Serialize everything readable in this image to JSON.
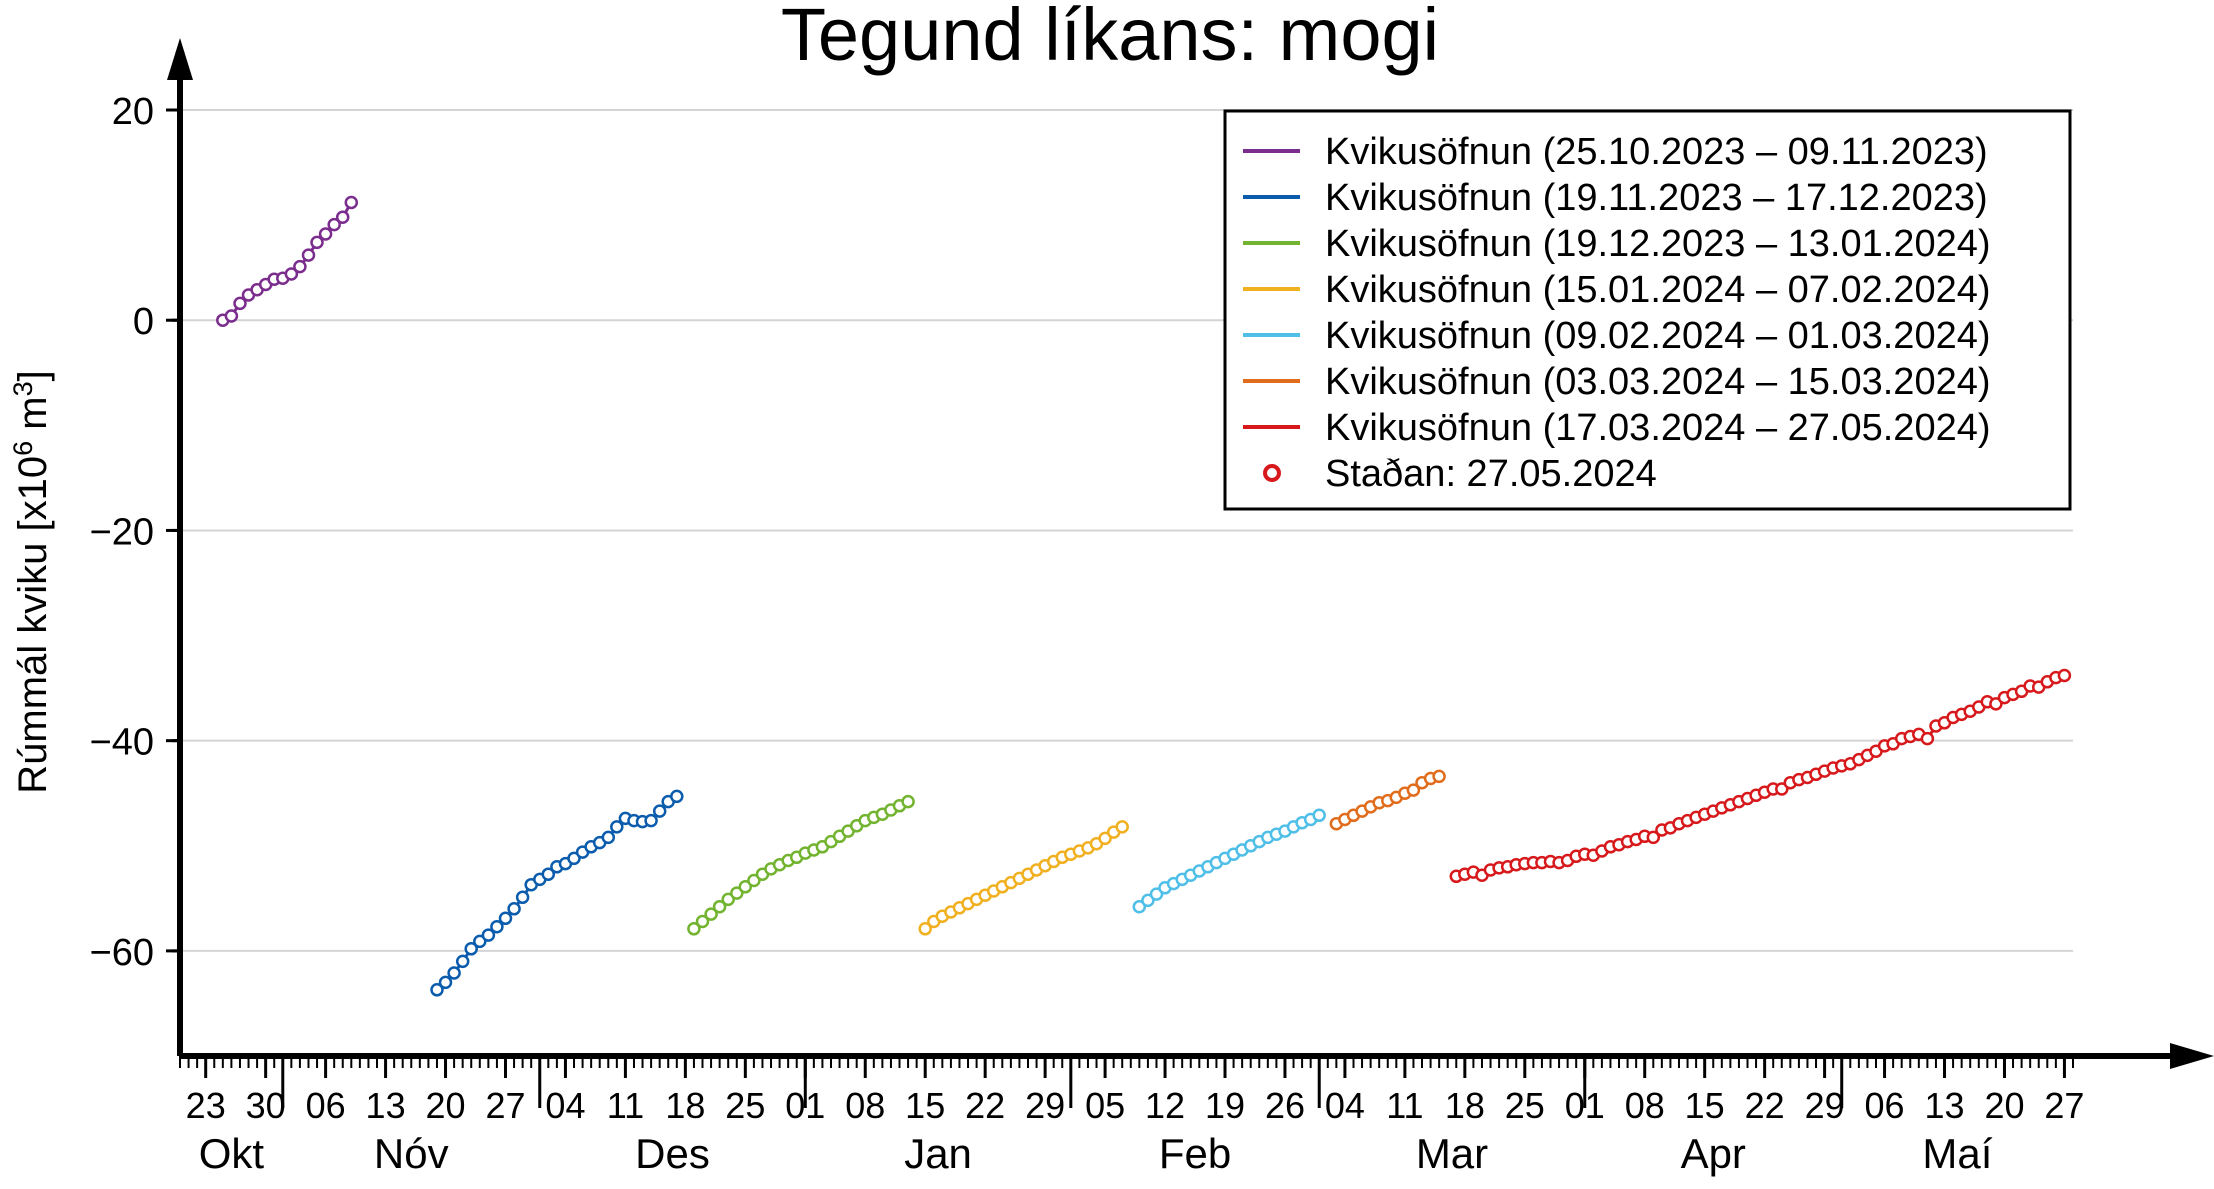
{
  "chart_data": {
    "type": "scatter",
    "title": "Tegund líkans: mogi",
    "ylabel_main": "Rúmmál kviku [x10",
    "ylabel_sup1": "6",
    "ylabel_mid": " m",
    "ylabel_sup2": "3",
    "ylabel_end": "]",
    "ylim": [
      -70,
      20
    ],
    "yticks": [
      -60,
      -40,
      -20,
      0,
      20
    ],
    "ytick_labels": [
      "−60",
      "−40",
      "−20",
      "0",
      "20"
    ],
    "xlim": [
      "2023-10-20",
      "2024-05-28"
    ],
    "grid": "horizontal",
    "legend_position": "top-right",
    "x_day_ticks": [
      {
        "date": "2023-10-23",
        "label": "23"
      },
      {
        "date": "2023-10-30",
        "label": "30"
      },
      {
        "date": "2023-11-06",
        "label": "06"
      },
      {
        "date": "2023-11-13",
        "label": "13"
      },
      {
        "date": "2023-11-20",
        "label": "20"
      },
      {
        "date": "2023-11-27",
        "label": "27"
      },
      {
        "date": "2023-12-04",
        "label": "04"
      },
      {
        "date": "2023-12-11",
        "label": "11"
      },
      {
        "date": "2023-12-18",
        "label": "18"
      },
      {
        "date": "2023-12-25",
        "label": "25"
      },
      {
        "date": "2024-01-01",
        "label": "01"
      },
      {
        "date": "2024-01-08",
        "label": "08"
      },
      {
        "date": "2024-01-15",
        "label": "15"
      },
      {
        "date": "2024-01-22",
        "label": "22"
      },
      {
        "date": "2024-01-29",
        "label": "29"
      },
      {
        "date": "2024-02-05",
        "label": "05"
      },
      {
        "date": "2024-02-12",
        "label": "12"
      },
      {
        "date": "2024-02-19",
        "label": "19"
      },
      {
        "date": "2024-02-26",
        "label": "26"
      },
      {
        "date": "2024-03-04",
        "label": "04"
      },
      {
        "date": "2024-03-11",
        "label": "11"
      },
      {
        "date": "2024-03-18",
        "label": "18"
      },
      {
        "date": "2024-03-25",
        "label": "25"
      },
      {
        "date": "2024-04-01",
        "label": "01"
      },
      {
        "date": "2024-04-08",
        "label": "08"
      },
      {
        "date": "2024-04-15",
        "label": "15"
      },
      {
        "date": "2024-04-22",
        "label": "22"
      },
      {
        "date": "2024-04-29",
        "label": "29"
      },
      {
        "date": "2024-05-06",
        "label": "06"
      },
      {
        "date": "2024-05-13",
        "label": "13"
      },
      {
        "date": "2024-05-20",
        "label": "20"
      },
      {
        "date": "2024-05-27",
        "label": "27"
      }
    ],
    "x_months": [
      {
        "label": "Okt",
        "start": "2023-10-20",
        "end": "2023-11-01",
        "boundary": "2023-11-01"
      },
      {
        "label": "Nóv",
        "start": "2023-11-01",
        "end": "2023-12-01",
        "boundary": "2023-12-01"
      },
      {
        "label": "Des",
        "start": "2023-12-01",
        "end": "2024-01-01",
        "boundary": "2024-01-01"
      },
      {
        "label": "Jan",
        "start": "2024-01-01",
        "end": "2024-02-01",
        "boundary": "2024-02-01"
      },
      {
        "label": "Feb",
        "start": "2024-02-01",
        "end": "2024-03-01",
        "boundary": "2024-03-01"
      },
      {
        "label": "Mar",
        "start": "2024-03-01",
        "end": "2024-04-01",
        "boundary": "2024-04-01"
      },
      {
        "label": "Apr",
        "start": "2024-04-01",
        "end": "2024-05-01",
        "boundary": "2024-05-01"
      },
      {
        "label": "Maí",
        "start": "2024-05-01",
        "end": "2024-05-28",
        "boundary": null
      }
    ],
    "series": [
      {
        "name": "Kvikusöfnun (25.10.2023 – 09.11.2023)",
        "color": "#7b2d8e",
        "x": [
          "2023-10-25",
          "2023-10-26",
          "2023-10-27",
          "2023-10-28",
          "2023-10-29",
          "2023-10-30",
          "2023-10-31",
          "2023-11-01",
          "2023-11-02",
          "2023-11-03",
          "2023-11-04",
          "2023-11-05",
          "2023-11-06",
          "2023-11-07",
          "2023-11-08",
          "2023-11-09"
        ],
        "y": [
          0.0,
          0.4,
          1.6,
          2.4,
          2.9,
          3.4,
          3.9,
          4.0,
          4.4,
          5.1,
          6.2,
          7.4,
          8.2,
          9.1,
          9.8,
          11.2
        ]
      },
      {
        "name": "Kvikusöfnun (19.11.2023 – 17.12.2023)",
        "color": "#0b5cad",
        "x": [
          "2023-11-19",
          "2023-11-20",
          "2023-11-21",
          "2023-11-22",
          "2023-11-23",
          "2023-11-24",
          "2023-11-25",
          "2023-11-26",
          "2023-11-27",
          "2023-11-28",
          "2023-11-29",
          "2023-11-30",
          "2023-12-01",
          "2023-12-02",
          "2023-12-03",
          "2023-12-04",
          "2023-12-05",
          "2023-12-06",
          "2023-12-07",
          "2023-12-08",
          "2023-12-09",
          "2023-12-10",
          "2023-12-11",
          "2023-12-12",
          "2023-12-13",
          "2023-12-14",
          "2023-12-15",
          "2023-12-16",
          "2023-12-17"
        ],
        "y": [
          -63.7,
          -63.0,
          -62.1,
          -61.0,
          -59.8,
          -59.1,
          -58.5,
          -57.7,
          -56.9,
          -56.0,
          -54.9,
          -53.7,
          -53.2,
          -52.7,
          -52.0,
          -51.7,
          -51.2,
          -50.6,
          -50.1,
          -49.7,
          -49.2,
          -48.2,
          -47.4,
          -47.6,
          -47.7,
          -47.6,
          -46.7,
          -45.8,
          -45.3
        ]
      },
      {
        "name": "Kvikusöfnun (19.12.2023 – 13.01.2024)",
        "color": "#72b32f",
        "x": [
          "2023-12-19",
          "2023-12-20",
          "2023-12-21",
          "2023-12-22",
          "2023-12-23",
          "2023-12-24",
          "2023-12-25",
          "2023-12-26",
          "2023-12-27",
          "2023-12-28",
          "2023-12-29",
          "2023-12-30",
          "2023-12-31",
          "2024-01-01",
          "2024-01-02",
          "2024-01-03",
          "2024-01-04",
          "2024-01-05",
          "2024-01-06",
          "2024-01-07",
          "2024-01-08",
          "2024-01-09",
          "2024-01-10",
          "2024-01-11",
          "2024-01-12",
          "2024-01-13"
        ],
        "y": [
          -57.9,
          -57.2,
          -56.5,
          -55.8,
          -55.1,
          -54.5,
          -53.9,
          -53.3,
          -52.7,
          -52.2,
          -51.8,
          -51.4,
          -51.1,
          -50.7,
          -50.4,
          -50.1,
          -49.6,
          -49.1,
          -48.6,
          -48.1,
          -47.6,
          -47.3,
          -47.0,
          -46.6,
          -46.2,
          -45.8
        ]
      },
      {
        "name": "Kvikusöfnun (15.01.2024 – 07.02.2024)",
        "color": "#f0b020",
        "x": [
          "2024-01-15",
          "2024-01-16",
          "2024-01-17",
          "2024-01-18",
          "2024-01-19",
          "2024-01-20",
          "2024-01-21",
          "2024-01-22",
          "2024-01-23",
          "2024-01-24",
          "2024-01-25",
          "2024-01-26",
          "2024-01-27",
          "2024-01-28",
          "2024-01-29",
          "2024-01-30",
          "2024-01-31",
          "2024-02-01",
          "2024-02-02",
          "2024-02-03",
          "2024-02-04",
          "2024-02-05",
          "2024-02-06",
          "2024-02-07"
        ],
        "y": [
          -57.9,
          -57.2,
          -56.7,
          -56.3,
          -55.9,
          -55.5,
          -55.1,
          -54.7,
          -54.3,
          -53.9,
          -53.5,
          -53.1,
          -52.7,
          -52.3,
          -51.9,
          -51.5,
          -51.1,
          -50.8,
          -50.5,
          -50.2,
          -49.8,
          -49.3,
          -48.7,
          -48.2
        ]
      },
      {
        "name": "Kvikusöfnun (09.02.2024 – 01.03.2024)",
        "color": "#4fbfe8",
        "x": [
          "2024-02-09",
          "2024-02-10",
          "2024-02-11",
          "2024-02-12",
          "2024-02-13",
          "2024-02-14",
          "2024-02-15",
          "2024-02-16",
          "2024-02-17",
          "2024-02-18",
          "2024-02-19",
          "2024-02-20",
          "2024-02-21",
          "2024-02-22",
          "2024-02-23",
          "2024-02-24",
          "2024-02-25",
          "2024-02-26",
          "2024-02-27",
          "2024-02-28",
          "2024-02-29",
          "2024-03-01"
        ],
        "y": [
          -55.8,
          -55.2,
          -54.6,
          -54.0,
          -53.6,
          -53.2,
          -52.8,
          -52.4,
          -52.0,
          -51.6,
          -51.2,
          -50.8,
          -50.4,
          -50.0,
          -49.6,
          -49.2,
          -48.9,
          -48.6,
          -48.2,
          -47.8,
          -47.5,
          -47.1
        ]
      },
      {
        "name": "Kvikusöfnun (03.03.2024 – 15.03.2024)",
        "color": "#e06c1c",
        "x": [
          "2024-03-03",
          "2024-03-04",
          "2024-03-05",
          "2024-03-06",
          "2024-03-07",
          "2024-03-08",
          "2024-03-09",
          "2024-03-10",
          "2024-03-11",
          "2024-03-12",
          "2024-03-13",
          "2024-03-14",
          "2024-03-15"
        ],
        "y": [
          -47.9,
          -47.5,
          -47.1,
          -46.7,
          -46.3,
          -45.9,
          -45.7,
          -45.4,
          -45.0,
          -44.7,
          -44.0,
          -43.6,
          -43.4
        ]
      },
      {
        "name": "Kvikusöfnun (17.03.2024 – 27.05.2024)",
        "color": "#d7191c",
        "x": [
          "2024-03-17",
          "2024-03-18",
          "2024-03-19",
          "2024-03-20",
          "2024-03-21",
          "2024-03-22",
          "2024-03-23",
          "2024-03-24",
          "2024-03-25",
          "2024-03-26",
          "2024-03-27",
          "2024-03-28",
          "2024-03-29",
          "2024-03-30",
          "2024-03-31",
          "2024-04-01",
          "2024-04-02",
          "2024-04-03",
          "2024-04-04",
          "2024-04-05",
          "2024-04-06",
          "2024-04-07",
          "2024-04-08",
          "2024-04-09",
          "2024-04-10",
          "2024-04-11",
          "2024-04-12",
          "2024-04-13",
          "2024-04-14",
          "2024-04-15",
          "2024-04-16",
          "2024-04-17",
          "2024-04-18",
          "2024-04-19",
          "2024-04-20",
          "2024-04-21",
          "2024-04-22",
          "2024-04-23",
          "2024-04-24",
          "2024-04-25",
          "2024-04-26",
          "2024-04-27",
          "2024-04-28",
          "2024-04-29",
          "2024-04-30",
          "2024-05-01",
          "2024-05-02",
          "2024-05-03",
          "2024-05-04",
          "2024-05-05",
          "2024-05-06",
          "2024-05-07",
          "2024-05-08",
          "2024-05-09",
          "2024-05-10",
          "2024-05-11",
          "2024-05-12",
          "2024-05-13",
          "2024-05-14",
          "2024-05-15",
          "2024-05-16",
          "2024-05-17",
          "2024-05-18",
          "2024-05-19",
          "2024-05-20",
          "2024-05-21",
          "2024-05-22",
          "2024-05-23",
          "2024-05-24",
          "2024-05-25",
          "2024-05-26",
          "2024-05-27"
        ],
        "y": [
          -52.9,
          -52.7,
          -52.5,
          -52.8,
          -52.3,
          -52.1,
          -52.0,
          -51.8,
          -51.7,
          -51.6,
          -51.6,
          -51.5,
          -51.6,
          -51.4,
          -51.0,
          -50.8,
          -50.9,
          -50.5,
          -50.1,
          -49.9,
          -49.6,
          -49.4,
          -49.1,
          -49.2,
          -48.5,
          -48.3,
          -47.9,
          -47.6,
          -47.3,
          -47.0,
          -46.7,
          -46.4,
          -46.1,
          -45.8,
          -45.5,
          -45.2,
          -44.9,
          -44.6,
          -44.6,
          -44.0,
          -43.7,
          -43.5,
          -43.2,
          -42.9,
          -42.6,
          -42.4,
          -42.2,
          -41.8,
          -41.4,
          -41.0,
          -40.5,
          -40.3,
          -39.8,
          -39.6,
          -39.4,
          -39.8,
          -38.6,
          -38.3,
          -37.8,
          -37.5,
          -37.2,
          -36.8,
          -36.3,
          -36.5,
          -35.9,
          -35.6,
          -35.3,
          -34.8,
          -34.9,
          -34.4,
          -34.0,
          -33.8
        ]
      }
    ],
    "status_marker_label": "Staðan: 27.05.2024",
    "status_marker_color": "#d7191c"
  }
}
